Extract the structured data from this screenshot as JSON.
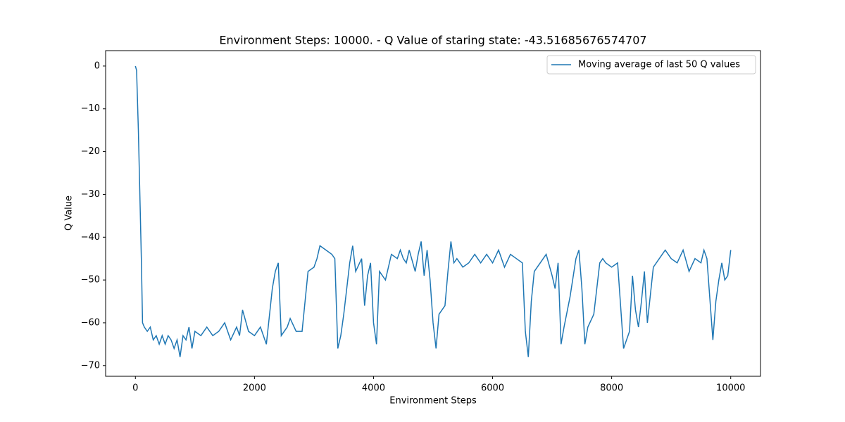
{
  "chart_data": {
    "type": "line",
    "title": "Environment Steps: 10000. - Q Value of staring state: -43.51685676574707",
    "x_label": "Environment Steps",
    "y_label": "Q Value",
    "legend": "upper right",
    "xlim": [
      -500,
      10500
    ],
    "ylim": [
      -72.5,
      3.6
    ],
    "xticks": [
      0,
      2000,
      4000,
      6000,
      8000,
      10000
    ],
    "yticks": [
      0,
      {
        "value": -10,
        "label": "−10"
      },
      {
        "value": -20,
        "label": "−20"
      },
      {
        "value": -30,
        "label": "−30"
      },
      {
        "value": -40,
        "label": "−40"
      },
      {
        "value": -50,
        "label": "−50"
      },
      {
        "value": -60,
        "label": "−60"
      },
      {
        "value": -70,
        "label": "−70"
      }
    ],
    "x": [
      0,
      20,
      50,
      100,
      120,
      150,
      200,
      250,
      300,
      350,
      400,
      450,
      500,
      550,
      600,
      650,
      700,
      750,
      800,
      850,
      900,
      950,
      1000,
      1100,
      1200,
      1300,
      1400,
      1500,
      1600,
      1700,
      1750,
      1800,
      1900,
      2000,
      2100,
      2200,
      2300,
      2350,
      2400,
      2450,
      2550,
      2600,
      2700,
      2800,
      2900,
      3000,
      3050,
      3100,
      3200,
      3300,
      3350,
      3400,
      3450,
      3500,
      3600,
      3650,
      3700,
      3800,
      3850,
      3900,
      3950,
      4000,
      4050,
      4100,
      4200,
      4300,
      4400,
      4450,
      4500,
      4550,
      4600,
      4700,
      4750,
      4800,
      4850,
      4900,
      4950,
      5000,
      5050,
      5100,
      5200,
      5250,
      5300,
      5350,
      5400,
      5500,
      5600,
      5700,
      5800,
      5900,
      6000,
      6100,
      6200,
      6300,
      6400,
      6500,
      6550,
      6600,
      6650,
      6700,
      6800,
      6850,
      6900,
      7000,
      7050,
      7100,
      7150,
      7200,
      7300,
      7400,
      7450,
      7500,
      7550,
      7600,
      7700,
      7800,
      7850,
      7900,
      8000,
      8100,
      8200,
      8300,
      8350,
      8400,
      8450,
      8500,
      8550,
      8600,
      8700,
      8800,
      8900,
      9000,
      9100,
      9200,
      9300,
      9400,
      9500,
      9550,
      9600,
      9700,
      9750,
      9800,
      9850,
      9900,
      9950,
      10000
    ],
    "series": [
      {
        "name": "Moving average of last 50 Q values",
        "color": "#1f77b4",
        "values": [
          0,
          -1,
          -15,
          -45,
          -60,
          -61,
          -62,
          -61,
          -64,
          -63,
          -65,
          -63,
          -65,
          -63,
          -64,
          -66,
          -64,
          -68,
          -63,
          -64,
          -61,
          -66,
          -62,
          -63,
          -61,
          -63,
          -62,
          -60,
          -64,
          -61,
          -63,
          -57,
          -62,
          -63,
          -61,
          -65,
          -52,
          -48,
          -46,
          -63,
          -61,
          -59,
          -62,
          -62,
          -48,
          -47,
          -45,
          -42,
          -43,
          -44,
          -45,
          -66,
          -63,
          -58,
          -46,
          -42,
          -48,
          -45,
          -56,
          -49,
          -46,
          -60,
          -65,
          -48,
          -50,
          -44,
          -45,
          -43,
          -45,
          -46,
          -43,
          -48,
          -44,
          -41,
          -49,
          -43,
          -50,
          -60,
          -66,
          -58,
          -56,
          -48,
          -41,
          -46,
          -45,
          -47,
          -46,
          -44,
          -46,
          -44,
          -46,
          -43,
          -47,
          -44,
          -45,
          -46,
          -62,
          -68,
          -55,
          -48,
          -46,
          -45,
          -44,
          -49,
          -52,
          -46,
          -65,
          -61,
          -54,
          -45,
          -43,
          -52,
          -65,
          -61,
          -58,
          -46,
          -45,
          -46,
          -47,
          -46,
          -66,
          -62,
          -49,
          -57,
          -61,
          -55,
          -48,
          -60,
          -47,
          -45,
          -43,
          -45,
          -46,
          -43,
          -48,
          -45,
          -46,
          -43,
          -45,
          -64,
          -55,
          -50,
          -46,
          -50,
          -49,
          -43
        ]
      }
    ]
  }
}
